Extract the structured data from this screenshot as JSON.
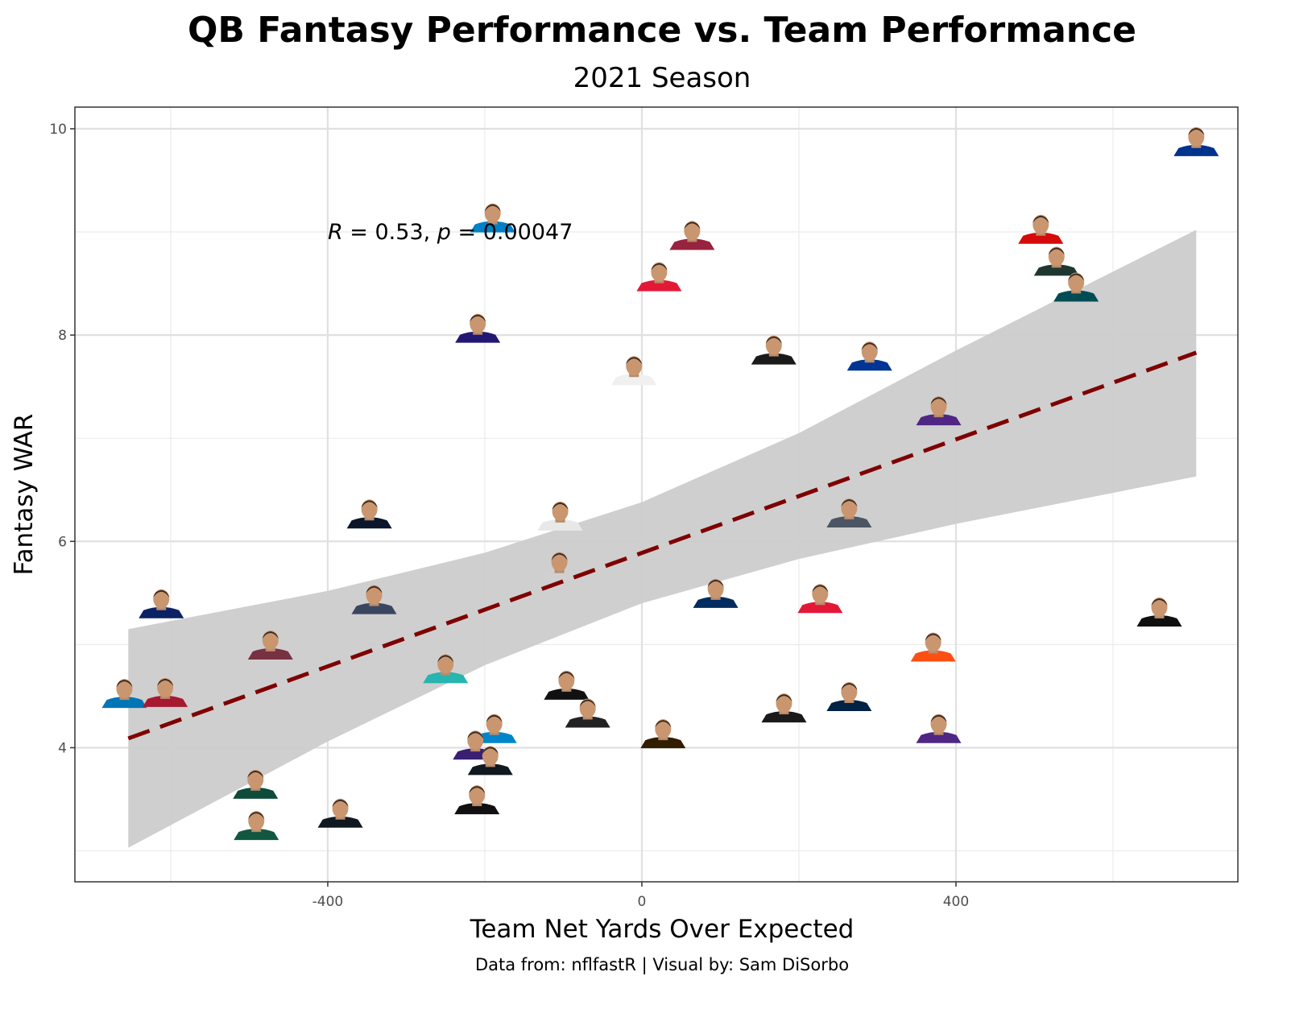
{
  "chart_data": {
    "type": "scatter",
    "title": "QB Fantasy Performance vs. Team Performance",
    "subtitle": "2021 Season",
    "xlabel": "Team Net Yards Over Expected",
    "ylabel": "Fantasy WAR",
    "caption": "Data from: nflfastR | Visual by: Sam DiSorbo",
    "xlim": [
      -722,
      759
    ],
    "ylim": [
      2.7,
      10.21
    ],
    "x_ticks": [
      -400,
      0,
      400
    ],
    "x_tick_labels": [
      "-400",
      "0",
      "400"
    ],
    "x_minor": [
      -600,
      -200,
      200,
      600
    ],
    "y_ticks": [
      4,
      6,
      8,
      10
    ],
    "y_tick_labels": [
      "4",
      "6",
      "8",
      "10"
    ],
    "y_minor": [
      3,
      5,
      7,
      9
    ],
    "grid": true,
    "marker": "player headshot",
    "annotation": {
      "r_label": "R",
      "r_value": " = 0.53, ",
      "p_label": "p",
      "p_value": " = 0.00047",
      "x": -400,
      "y": 9.0
    },
    "trend_line": {
      "color": "#7f0000",
      "style": "dashed",
      "x": [
        -654,
        706
      ],
      "y": [
        4.09,
        7.83
      ]
    },
    "confidence_band": {
      "color": "#cccccc",
      "x": [
        -654,
        -400,
        -200,
        0,
        200,
        400,
        706
      ],
      "ymin": [
        3.03,
        4.06,
        4.8,
        5.4,
        5.83,
        6.17,
        6.63
      ],
      "ymax": [
        5.15,
        5.52,
        5.89,
        6.38,
        7.05,
        7.85,
        9.02
      ]
    },
    "points": [
      {
        "x": 706,
        "y": 9.86,
        "jersey_color": "#00338d"
      },
      {
        "x": -190,
        "y": 9.12,
        "jersey_color": "#0080c6"
      },
      {
        "x": 64,
        "y": 8.95,
        "jersey_color": "#97233f"
      },
      {
        "x": 22,
        "y": 8.55,
        "jersey_color": "#e31837"
      },
      {
        "x": -209,
        "y": 8.05,
        "jersey_color": "#241773"
      },
      {
        "x": -10,
        "y": 7.64,
        "jersey_color": "#f0f0f0"
      },
      {
        "x": 168,
        "y": 7.84,
        "jersey_color": "#1a1a1a"
      },
      {
        "x": 290,
        "y": 7.78,
        "jersey_color": "#003594"
      },
      {
        "x": 508,
        "y": 9.01,
        "jersey_color": "#d50a0a"
      },
      {
        "x": 528,
        "y": 8.7,
        "jersey_color": "#203731"
      },
      {
        "x": 553,
        "y": 8.45,
        "jersey_color": "#004c54"
      },
      {
        "x": 378,
        "y": 7.25,
        "jersey_color": "#4f2683"
      },
      {
        "x": -347,
        "y": 6.25,
        "jersey_color": "#0b162a"
      },
      {
        "x": -104,
        "y": 6.23,
        "jersey_color": "#e8e8e8"
      },
      {
        "x": 264,
        "y": 6.26,
        "jersey_color": "#4b5563"
      },
      {
        "x": -105,
        "y": 5.74,
        "jersey_color": "#d0d0d0"
      },
      {
        "x": 94,
        "y": 5.48,
        "jersey_color": "#002c5f"
      },
      {
        "x": 227,
        "y": 5.43,
        "jersey_color": "#e31837"
      },
      {
        "x": 659,
        "y": 5.3,
        "jersey_color": "#101010"
      },
      {
        "x": -612,
        "y": 5.38,
        "jersey_color": "#0b2265"
      },
      {
        "x": -341,
        "y": 5.42,
        "jersey_color": "#3a4660"
      },
      {
        "x": -473,
        "y": 4.98,
        "jersey_color": "#773141"
      },
      {
        "x": -250,
        "y": 4.75,
        "jersey_color": "#26b5b0"
      },
      {
        "x": 371,
        "y": 4.96,
        "jersey_color": "#fb4f14"
      },
      {
        "x": -659,
        "y": 4.51,
        "jersey_color": "#0076b6"
      },
      {
        "x": -607,
        "y": 4.52,
        "jersey_color": "#a71930"
      },
      {
        "x": -96,
        "y": 4.59,
        "jersey_color": "#111111"
      },
      {
        "x": -69,
        "y": 4.32,
        "jersey_color": "#222222"
      },
      {
        "x": 181,
        "y": 4.37,
        "jersey_color": "#1a1a1a"
      },
      {
        "x": 264,
        "y": 4.48,
        "jersey_color": "#002244"
      },
      {
        "x": 27,
        "y": 4.12,
        "jersey_color": "#311d00"
      },
      {
        "x": 378,
        "y": 4.17,
        "jersey_color": "#4f2683"
      },
      {
        "x": -188,
        "y": 4.17,
        "jersey_color": "#0085ca"
      },
      {
        "x": -212,
        "y": 4.01,
        "jersey_color": "#3b1f73"
      },
      {
        "x": -193,
        "y": 3.86,
        "jersey_color": "#101820"
      },
      {
        "x": -210,
        "y": 3.48,
        "jersey_color": "#101010"
      },
      {
        "x": -492,
        "y": 3.63,
        "jersey_color": "#0e4b3a"
      },
      {
        "x": -384,
        "y": 3.35,
        "jersey_color": "#101820"
      },
      {
        "x": -491,
        "y": 3.23,
        "jersey_color": "#125740"
      }
    ]
  }
}
